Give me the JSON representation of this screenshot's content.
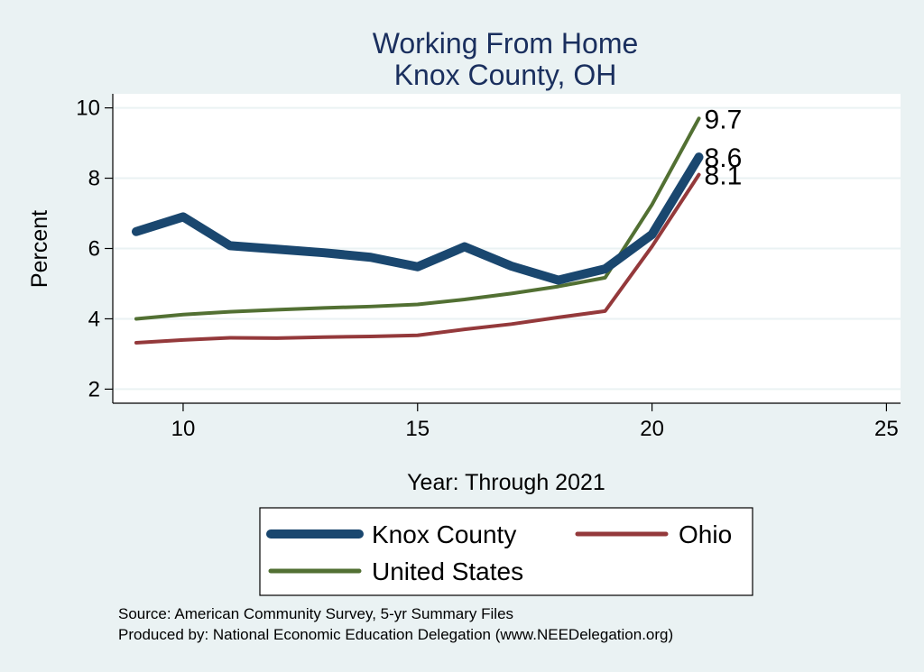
{
  "chart_data": {
    "type": "line",
    "title_line1": "Working From Home",
    "title_line2": "Knox County, OH",
    "xlabel": "Year: Through 2021",
    "ylabel": "Percent",
    "xlim": [
      8.5,
      25.3
    ],
    "ylim": [
      1.6,
      10.4
    ],
    "x_ticks": [
      10,
      15,
      20,
      25
    ],
    "y_ticks": [
      2,
      4,
      6,
      8,
      10
    ],
    "grid": true,
    "x": [
      9,
      10,
      11,
      12,
      13,
      14,
      15,
      16,
      17,
      18,
      19,
      20,
      21
    ],
    "series": [
      {
        "name": "United States",
        "color": "#527033",
        "width": 4,
        "values": [
          4.0,
          4.12,
          4.2,
          4.26,
          4.31,
          4.35,
          4.41,
          4.55,
          4.72,
          4.92,
          5.17,
          7.25,
          9.7
        ]
      },
      {
        "name": "Ohio",
        "color": "#94393b",
        "width": 4,
        "values": [
          3.32,
          3.4,
          3.46,
          3.45,
          3.48,
          3.5,
          3.53,
          3.7,
          3.85,
          4.04,
          4.22,
          6.06,
          8.1
        ]
      },
      {
        "name": "Knox County",
        "color": "#1a476f",
        "width": 10,
        "values": [
          6.48,
          6.9,
          6.08,
          5.98,
          5.88,
          5.75,
          5.48,
          6.05,
          5.5,
          5.1,
          5.42,
          6.4,
          8.6
        ]
      }
    ],
    "end_labels": [
      {
        "series": "United States",
        "text": "9.7"
      },
      {
        "series": "Knox County",
        "text": "8.6"
      },
      {
        "series": "Ohio",
        "text": "8.1"
      }
    ],
    "legend": [
      {
        "name": "Knox County",
        "color": "#1a476f"
      },
      {
        "name": "Ohio",
        "color": "#94393b"
      },
      {
        "name": "United States",
        "color": "#527033"
      }
    ]
  },
  "footer": {
    "source": "Source: American Community Survey, 5-yr Summary Files",
    "produced_by": "Produced by: National Economic Education Delegation (www.NEEDelegation.org)"
  }
}
